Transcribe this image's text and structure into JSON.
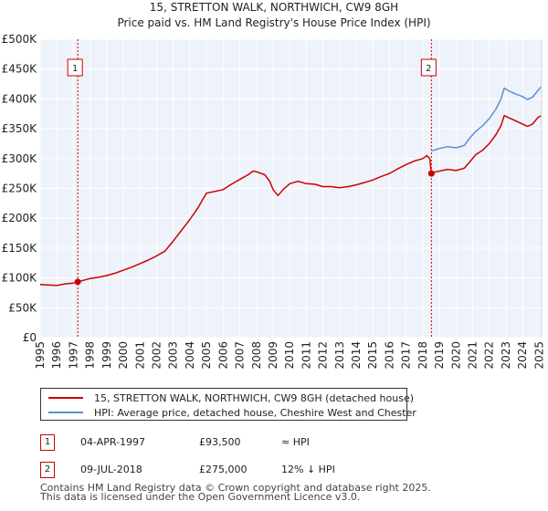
{
  "chart_data": {
    "type": "line",
    "title": "15, STRETTON WALK, NORTHWICH, CW9 8GH",
    "subtitle": "Price paid vs. HM Land Registry's House Price Index (HPI)",
    "xlim": [
      1995,
      2025.2
    ],
    "ylim": [
      0,
      500000
    ],
    "x_ticks": [
      1995,
      1996,
      1997,
      1998,
      1999,
      2000,
      2001,
      2002,
      2003,
      2004,
      2005,
      2006,
      2007,
      2008,
      2009,
      2010,
      2011,
      2012,
      2013,
      2014,
      2015,
      2016,
      2017,
      2018,
      2019,
      2020,
      2021,
      2022,
      2023,
      2024,
      2025
    ],
    "y_ticks": [
      {
        "value": 0,
        "label": "£0"
      },
      {
        "value": 50000,
        "label": "£50K"
      },
      {
        "value": 100000,
        "label": "£100K"
      },
      {
        "value": 150000,
        "label": "£150K"
      },
      {
        "value": 200000,
        "label": "£200K"
      },
      {
        "value": 250000,
        "label": "£250K"
      },
      {
        "value": 300000,
        "label": "£300K"
      },
      {
        "value": 350000,
        "label": "£350K"
      },
      {
        "value": 400000,
        "label": "£400K"
      },
      {
        "value": 450000,
        "label": "£450K"
      },
      {
        "value": 500000,
        "label": "£500K"
      }
    ],
    "grid": true,
    "series": [
      {
        "name": "15, STRETTON WALK, NORTHWICH, CW9 8GH (detached house)",
        "color": "#cc0000",
        "points": [
          [
            1995.0,
            89000
          ],
          [
            1995.5,
            88000
          ],
          [
            1996.0,
            87500
          ],
          [
            1996.5,
            90000
          ],
          [
            1997.0,
            91500
          ],
          [
            1997.26,
            93500
          ],
          [
            1997.6,
            96000
          ],
          [
            1998.0,
            99000
          ],
          [
            1998.5,
            101000
          ],
          [
            1999.0,
            104000
          ],
          [
            1999.5,
            108000
          ],
          [
            2000.0,
            113000
          ],
          [
            2000.5,
            118000
          ],
          [
            2001.0,
            124000
          ],
          [
            2001.5,
            130000
          ],
          [
            2002.0,
            137000
          ],
          [
            2002.5,
            145000
          ],
          [
            2003.0,
            162000
          ],
          [
            2003.5,
            180000
          ],
          [
            2004.0,
            198000
          ],
          [
            2004.5,
            218000
          ],
          [
            2004.8,
            233000
          ],
          [
            2005.0,
            242000
          ],
          [
            2005.5,
            245000
          ],
          [
            2006.0,
            248000
          ],
          [
            2006.5,
            257000
          ],
          [
            2007.0,
            265000
          ],
          [
            2007.5,
            273000
          ],
          [
            2007.8,
            279000
          ],
          [
            2008.0,
            278000
          ],
          [
            2008.5,
            273000
          ],
          [
            2008.8,
            262000
          ],
          [
            2009.0,
            248000
          ],
          [
            2009.3,
            238000
          ],
          [
            2009.6,
            248000
          ],
          [
            2010.0,
            258000
          ],
          [
            2010.5,
            262000
          ],
          [
            2011.0,
            258000
          ],
          [
            2011.5,
            257000
          ],
          [
            2012.0,
            253000
          ],
          [
            2012.5,
            253000
          ],
          [
            2013.0,
            251000
          ],
          [
            2013.5,
            253000
          ],
          [
            2014.0,
            256000
          ],
          [
            2014.5,
            260000
          ],
          [
            2015.0,
            264000
          ],
          [
            2015.5,
            270000
          ],
          [
            2016.0,
            275000
          ],
          [
            2016.5,
            283000
          ],
          [
            2017.0,
            290000
          ],
          [
            2017.5,
            296000
          ],
          [
            2018.0,
            300000
          ],
          [
            2018.25,
            305000
          ],
          [
            2018.42,
            300000
          ],
          [
            2018.52,
            275000
          ],
          [
            2018.8,
            278000
          ],
          [
            2019.0,
            279000
          ],
          [
            2019.5,
            282000
          ],
          [
            2020.0,
            280000
          ],
          [
            2020.5,
            284000
          ],
          [
            2020.9,
            297000
          ],
          [
            2021.2,
            307000
          ],
          [
            2021.6,
            314000
          ],
          [
            2022.0,
            325000
          ],
          [
            2022.4,
            340000
          ],
          [
            2022.7,
            355000
          ],
          [
            2022.9,
            372000
          ],
          [
            2023.2,
            368000
          ],
          [
            2023.6,
            363000
          ],
          [
            2024.0,
            358000
          ],
          [
            2024.3,
            354000
          ],
          [
            2024.6,
            358000
          ],
          [
            2024.9,
            368000
          ],
          [
            2025.1,
            372000
          ]
        ]
      },
      {
        "name": "HPI: Average price, detached house, Cheshire West and Chester",
        "color": "#5b8fd6",
        "points": [
          [
            2018.52,
            313000
          ],
          [
            2018.8,
            315000
          ],
          [
            2019.0,
            317000
          ],
          [
            2019.5,
            320000
          ],
          [
            2020.0,
            318000
          ],
          [
            2020.5,
            322000
          ],
          [
            2020.9,
            337000
          ],
          [
            2021.2,
            346000
          ],
          [
            2021.6,
            355000
          ],
          [
            2022.0,
            367000
          ],
          [
            2022.4,
            383000
          ],
          [
            2022.7,
            400000
          ],
          [
            2022.9,
            418000
          ],
          [
            2023.2,
            413000
          ],
          [
            2023.6,
            408000
          ],
          [
            2024.0,
            404000
          ],
          [
            2024.3,
            399000
          ],
          [
            2024.6,
            403000
          ],
          [
            2024.9,
            413000
          ],
          [
            2025.1,
            420000
          ]
        ]
      }
    ],
    "sales": [
      {
        "id": "1",
        "x": 1997.26,
        "value": 93500
      },
      {
        "id": "2",
        "x": 2018.52,
        "value": 275000
      }
    ]
  },
  "legend": {
    "property_label": "15, STRETTON WALK, NORTHWICH, CW9 8GH (detached house)",
    "hpi_label": "HPI: Average price, detached house, Cheshire West and Chester"
  },
  "sales_table": [
    {
      "num": "1",
      "date": "04-APR-1997",
      "price": "£93,500",
      "hpi": "≈ HPI"
    },
    {
      "num": "2",
      "date": "09-JUL-2018",
      "price": "£275,000",
      "hpi": "12% ↓ HPI"
    }
  ],
  "footer": {
    "line1": "Contains HM Land Registry data © Crown copyright and database right 2025.",
    "line2": "This data is licensed under the Open Government Licence v3.0."
  },
  "colors": {
    "property": "#cc0000",
    "hpi": "#5b8fd6",
    "plot_bg": "#eef2fa",
    "grid": "#ffffff"
  }
}
